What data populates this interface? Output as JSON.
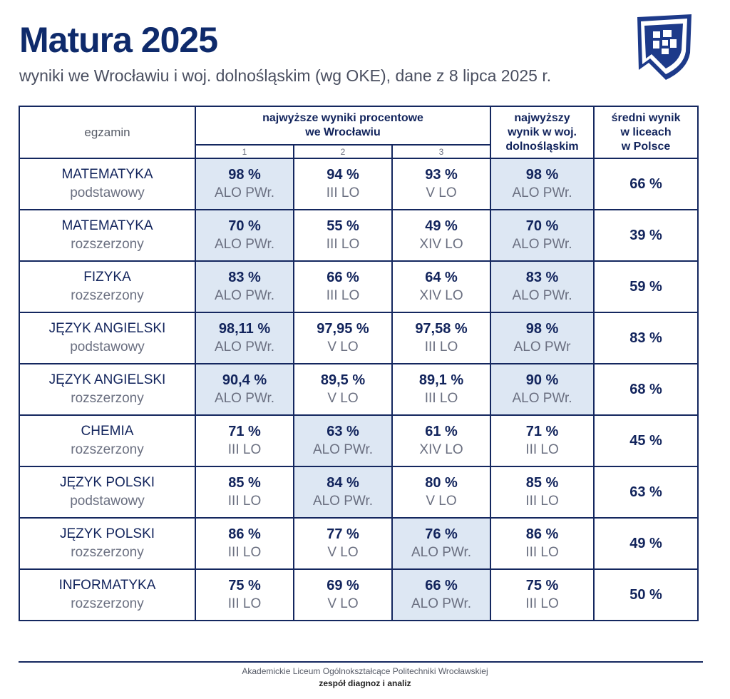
{
  "title": "Matura 2025",
  "subtitle": "wyniki we Wrocławiu i woj. dolnośląskim (wg OKE), dane z 8 lipca 2025 r.",
  "logo": {
    "icon": "school-shield-logo",
    "colors": [
      "#1d3a8a",
      "#ffffff"
    ]
  },
  "colors": {
    "accent": "#12245c",
    "highlight": "#dde7f3",
    "muted": "#6a6f80"
  },
  "table": {
    "header": {
      "exam": "egzamin",
      "group_line1": "najwyższe wyniki procentowe",
      "group_line2": "we Wrocławiu",
      "ranks": [
        "1",
        "2",
        "3"
      ],
      "region_line1": "najwyższy",
      "region_line2": "wynik w woj.",
      "region_line3": "dolnośląskim",
      "avg_line1": "średni wynik",
      "avg_line2": "w liceach",
      "avg_line3": "w Polsce"
    },
    "rows": [
      {
        "subject": "MATEMATYKA",
        "level": "podstawowy",
        "r1": {
          "pct": "98 %",
          "school": "ALO PWr."
        },
        "r2": {
          "pct": "94 %",
          "school": "III LO"
        },
        "r3": {
          "pct": "93 %",
          "school": "V LO"
        },
        "region": {
          "pct": "98 %",
          "school": "ALO PWr."
        },
        "avg": "66 %"
      },
      {
        "subject": "MATEMATYKA",
        "level": "rozszerzony",
        "r1": {
          "pct": "70 %",
          "school": "ALO PWr."
        },
        "r2": {
          "pct": "55 %",
          "school": "III LO"
        },
        "r3": {
          "pct": "49 %",
          "school": "XIV LO"
        },
        "region": {
          "pct": "70 %",
          "school": "ALO PWr."
        },
        "avg": "39 %"
      },
      {
        "subject": "FIZYKA",
        "level": "rozszerzony",
        "r1": {
          "pct": "83 %",
          "school": "ALO PWr."
        },
        "r2": {
          "pct": "66 %",
          "school": "III LO"
        },
        "r3": {
          "pct": "64 %",
          "school": "XIV LO"
        },
        "region": {
          "pct": "83 %",
          "school": "ALO PWr."
        },
        "avg": "59 %"
      },
      {
        "subject": "JĘZYK ANGIELSKI",
        "level": "podstawowy",
        "r1": {
          "pct": "98,11 %",
          "school": "ALO PWr."
        },
        "r2": {
          "pct": "97,95 %",
          "school": "V LO"
        },
        "r3": {
          "pct": "97,58 %",
          "school": "III LO"
        },
        "region": {
          "pct": "98 %",
          "school": "ALO PWr"
        },
        "avg": "83 %"
      },
      {
        "subject": "JĘZYK ANGIELSKI",
        "level": "rozszerzony",
        "r1": {
          "pct": "90,4 %",
          "school": "ALO PWr."
        },
        "r2": {
          "pct": "89,5 %",
          "school": "V LO"
        },
        "r3": {
          "pct": "89,1 %",
          "school": "III LO"
        },
        "region": {
          "pct": "90 %",
          "school": "ALO PWr."
        },
        "avg": "68 %"
      },
      {
        "subject": "CHEMIA",
        "level": "rozszerzony",
        "r1": {
          "pct": "71 %",
          "school": "III LO"
        },
        "r2": {
          "pct": "63 %",
          "school": "ALO PWr."
        },
        "r3": {
          "pct": "61 %",
          "school": "XIV LO"
        },
        "region": {
          "pct": "71 %",
          "school": "III LO"
        },
        "avg": "45 %"
      },
      {
        "subject": "JĘZYK POLSKI",
        "level": "podstawowy",
        "r1": {
          "pct": "85 %",
          "school": "III LO"
        },
        "r2": {
          "pct": "84 %",
          "school": "ALO PWr."
        },
        "r3": {
          "pct": "80 %",
          "school": "V LO"
        },
        "region": {
          "pct": "85 %",
          "school": "III LO"
        },
        "avg": "63 %"
      },
      {
        "subject": "JĘZYK POLSKI",
        "level": "rozszerzony",
        "r1": {
          "pct": "86 %",
          "school": "III LO"
        },
        "r2": {
          "pct": "77 %",
          "school": "V LO"
        },
        "r3": {
          "pct": "76 %",
          "school": "ALO PWr."
        },
        "region": {
          "pct": "86 %",
          "school": "III LO"
        },
        "avg": "49 %"
      },
      {
        "subject": "INFORMATYKA",
        "level": "rozszerzony",
        "r1": {
          "pct": "75 %",
          "school": "III LO"
        },
        "r2": {
          "pct": "69 %",
          "school": "V LO"
        },
        "r3": {
          "pct": "66 %",
          "school": "ALO PWr."
        },
        "region": {
          "pct": "75 %",
          "school": "III LO"
        },
        "avg": "50 %"
      }
    ]
  },
  "footer": {
    "line1": "Akademickie Liceum Ogólnokształcące Politechniki Wrocławskiej",
    "line2": "zespół diagnoz i analiz"
  }
}
